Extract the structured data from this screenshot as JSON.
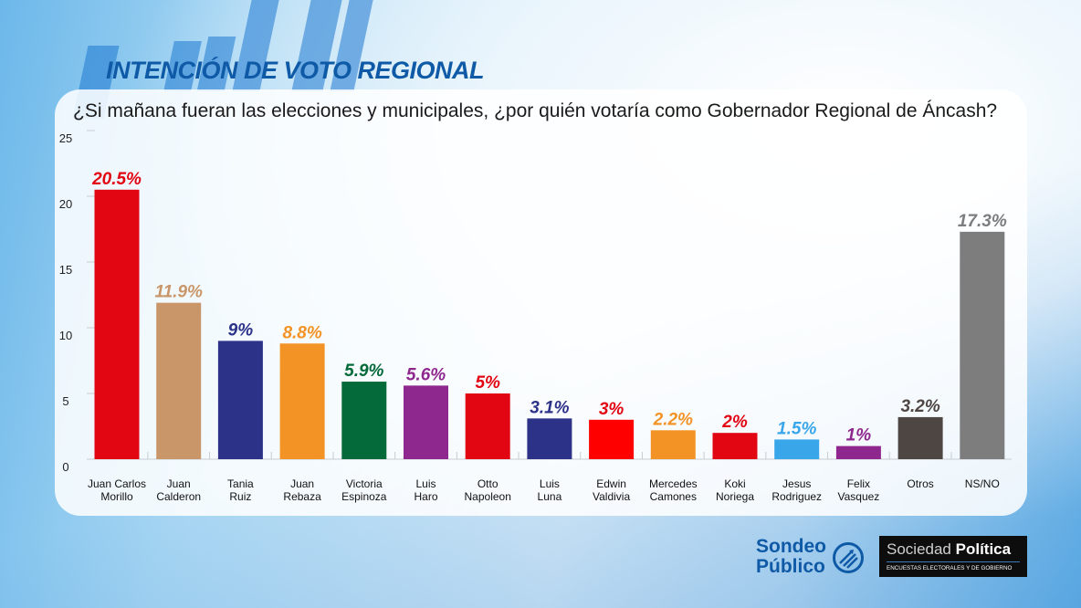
{
  "header": {
    "title": "INTENCIÓN DE VOTO REGIONAL",
    "question": "¿Si mañana fueran las elecciones y municipales, ¿por quién votaría como Gobernador Regional de Áncash?"
  },
  "logos": {
    "sondeo_line1": "Sondeo",
    "sondeo_line2": "Público",
    "sociedad_part1": "Sociedad",
    "sociedad_part2": "Política",
    "sociedad_tagline": "ENCUESTAS ELECTORALES Y DE GOBIERNO"
  },
  "chart_data": {
    "type": "bar",
    "title": "¿Si mañana fueran las elecciones y municipales, ¿por quién votaría como Gobernador Regional de Áncash?",
    "xlabel": "",
    "ylabel": "",
    "ylim": [
      0,
      25
    ],
    "yticks": [
      0,
      5,
      10,
      15,
      20,
      25
    ],
    "grid": false,
    "categories": [
      [
        "Juan Carlos",
        "Morillo"
      ],
      [
        "Juan",
        "Calderon"
      ],
      [
        "Tania",
        "Ruiz"
      ],
      [
        "Juan",
        "Rebaza"
      ],
      [
        "Victoria",
        "Espinoza"
      ],
      [
        "Luis",
        "Haro"
      ],
      [
        "Otto",
        "Napoleon"
      ],
      [
        "Luis",
        "Luna"
      ],
      [
        "Edwin",
        "Valdivia"
      ],
      [
        "Mercedes",
        "Camones"
      ],
      [
        "Koki",
        "Noriega"
      ],
      [
        "Jesus",
        "Rodriguez"
      ],
      [
        "Felix",
        "Vasquez"
      ],
      [
        "Otros"
      ],
      [
        "NS/NO"
      ]
    ],
    "values": [
      20.5,
      11.9,
      9,
      8.8,
      5.9,
      5.6,
      5,
      3.1,
      3,
      2.2,
      2,
      1.5,
      1,
      3.2,
      17.3
    ],
    "labels": [
      "20.5%",
      "11.9%",
      "9%",
      "8.8%",
      "5.9%",
      "5.6%",
      "5%",
      "3.1%",
      "3%",
      "2.2%",
      "2%",
      "1.5%",
      "1%",
      "3.2%",
      "17.3%"
    ],
    "colors": [
      "#e20613",
      "#c9966a",
      "#2b3288",
      "#f39325",
      "#056a3a",
      "#8e278e",
      "#e20613",
      "#2b3288",
      "#fe0000",
      "#f39325",
      "#e20613",
      "#3aa6ea",
      "#8e278e",
      "#4d4643",
      "#7d7d7d"
    ],
    "label_colors": [
      "#e20613",
      "#c9966a",
      "#2b3288",
      "#f39325",
      "#056a3a",
      "#8e278e",
      "#e20613",
      "#2b3288",
      "#e20613",
      "#f39325",
      "#e20613",
      "#3aa6ea",
      "#8e278e",
      "#4d4643",
      "#7d7d7d"
    ]
  }
}
